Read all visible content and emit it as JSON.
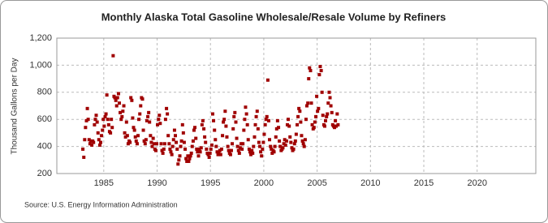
{
  "chart_data": {
    "type": "scatter",
    "title": "Monthly Alaska Total Gasoline Wholesale/Resale Volume by Refiners",
    "y_label": "Thousand Gallons per Day",
    "source": "Source: U.S. Energy Information Administration",
    "color": "#a00000",
    "grid": true,
    "xlim": [
      1980.6,
      2025.5
    ],
    "xticks": [
      1985,
      1990,
      1995,
      2000,
      2005,
      2010,
      2015,
      2020
    ],
    "ylim": [
      200,
      1200
    ],
    "yticks": [
      200,
      400,
      600,
      800,
      {
        "value": 1000,
        "label": "1,000"
      },
      {
        "value": 1200,
        "label": "1,200"
      }
    ],
    "x": [
      1983.04,
      1983.13,
      1983.21,
      1983.29,
      1983.38,
      1983.46,
      1983.54,
      1983.63,
      1983.71,
      1983.79,
      1983.88,
      1983.96,
      1984.04,
      1984.13,
      1984.21,
      1984.29,
      1984.38,
      1984.46,
      1984.54,
      1984.63,
      1984.71,
      1984.79,
      1984.88,
      1984.96,
      1985.04,
      1985.13,
      1985.21,
      1985.29,
      1985.38,
      1985.46,
      1985.54,
      1985.63,
      1985.71,
      1985.79,
      1985.88,
      1985.96,
      1986.04,
      1986.13,
      1986.21,
      1986.29,
      1986.38,
      1986.46,
      1986.54,
      1986.63,
      1986.71,
      1986.79,
      1986.88,
      1986.96,
      1987.04,
      1987.13,
      1987.21,
      1987.29,
      1987.38,
      1987.46,
      1987.54,
      1987.63,
      1987.71,
      1987.79,
      1987.88,
      1987.96,
      1988.04,
      1988.13,
      1988.21,
      1988.29,
      1988.38,
      1988.46,
      1988.54,
      1988.63,
      1988.71,
      1988.79,
      1988.88,
      1988.96,
      1989.04,
      1989.13,
      1989.21,
      1989.29,
      1989.38,
      1989.46,
      1989.54,
      1989.63,
      1989.71,
      1989.79,
      1989.88,
      1989.96,
      1990.04,
      1990.13,
      1990.21,
      1990.29,
      1990.38,
      1990.46,
      1990.54,
      1990.63,
      1990.71,
      1990.79,
      1990.88,
      1990.96,
      1991.04,
      1991.13,
      1991.21,
      1991.29,
      1991.38,
      1991.46,
      1991.54,
      1991.63,
      1991.71,
      1991.79,
      1991.88,
      1991.96,
      1992.04,
      1992.13,
      1992.21,
      1992.29,
      1992.38,
      1992.46,
      1992.54,
      1992.63,
      1992.71,
      1992.79,
      1992.88,
      1992.96,
      1993.04,
      1993.13,
      1993.21,
      1993.29,
      1993.38,
      1993.46,
      1993.54,
      1993.63,
      1993.71,
      1993.79,
      1993.88,
      1993.96,
      1994.04,
      1994.13,
      1994.21,
      1994.29,
      1994.38,
      1994.46,
      1994.54,
      1994.63,
      1994.71,
      1994.79,
      1994.88,
      1994.96,
      1995.04,
      1995.13,
      1995.21,
      1995.29,
      1995.38,
      1995.46,
      1995.54,
      1995.63,
      1995.71,
      1995.79,
      1995.88,
      1995.96,
      1996.04,
      1996.13,
      1996.21,
      1996.29,
      1996.38,
      1996.46,
      1996.54,
      1996.63,
      1996.71,
      1996.79,
      1996.88,
      1996.96,
      1997.04,
      1997.13,
      1997.21,
      1997.29,
      1997.38,
      1997.46,
      1997.54,
      1997.63,
      1997.71,
      1997.79,
      1997.88,
      1997.96,
      1998.04,
      1998.13,
      1998.21,
      1998.29,
      1998.38,
      1998.46,
      1998.54,
      1998.63,
      1998.71,
      1998.79,
      1998.88,
      1998.96,
      1999.04,
      1999.13,
      1999.21,
      1999.29,
      1999.38,
      1999.46,
      1999.54,
      1999.63,
      1999.71,
      1999.79,
      1999.88,
      1999.96,
      2000.04,
      2000.13,
      2000.21,
      2000.29,
      2000.38,
      2000.46,
      2000.54,
      2000.63,
      2000.71,
      2000.79,
      2000.88,
      2000.96,
      2001.04,
      2001.13,
      2001.21,
      2001.29,
      2001.38,
      2001.46,
      2001.54,
      2001.63,
      2001.71,
      2001.79,
      2001.88,
      2001.96,
      2002.04,
      2002.13,
      2002.21,
      2002.29,
      2002.38,
      2002.46,
      2002.54,
      2002.63,
      2002.71,
      2002.79,
      2002.88,
      2002.96,
      2003.04,
      2003.13,
      2003.21,
      2003.29,
      2003.38,
      2003.46,
      2003.54,
      2003.63,
      2003.71,
      2003.79,
      2003.88,
      2003.96,
      2004.04,
      2004.13,
      2004.21,
      2004.29,
      2004.38,
      2004.46,
      2004.54,
      2004.63,
      2004.71,
      2004.79,
      2004.88,
      2004.96,
      2005.04,
      2005.13,
      2005.21,
      2005.29,
      2005.38,
      2005.46,
      2005.54,
      2005.63,
      2005.71,
      2005.79,
      2005.88,
      2005.96,
      2006.04,
      2006.13,
      2006.21,
      2006.29,
      2006.38,
      2006.46,
      2006.54,
      2006.63,
      2006.71,
      2006.79,
      2006.88,
      2006.96
    ],
    "values": [
      380,
      320,
      450,
      540,
      590,
      680,
      600,
      450,
      420,
      440,
      410,
      440,
      430,
      560,
      600,
      630,
      580,
      500,
      450,
      410,
      430,
      480,
      520,
      600,
      550,
      620,
      640,
      780,
      600,
      560,
      510,
      500,
      600,
      540,
      1070,
      770,
      760,
      740,
      700,
      760,
      790,
      720,
      650,
      600,
      620,
      660,
      700,
      500,
      470,
      580,
      480,
      420,
      440,
      430,
      760,
      740,
      610,
      540,
      520,
      470,
      440,
      420,
      480,
      600,
      640,
      700,
      760,
      750,
      520,
      440,
      420,
      450,
      590,
      620,
      650,
      580,
      480,
      430,
      400,
      460,
      420,
      380,
      370,
      420,
      560,
      600,
      630,
      570,
      420,
      370,
      350,
      380,
      420,
      600,
      680,
      640,
      480,
      420,
      380,
      360,
      340,
      400,
      450,
      520,
      480,
      430,
      380,
      270,
      300,
      330,
      400,
      440,
      560,
      500,
      430,
      380,
      310,
      290,
      330,
      290,
      310,
      330,
      350,
      400,
      440,
      520,
      540,
      460,
      380,
      360,
      330,
      380,
      360,
      390,
      560,
      590,
      530,
      470,
      430,
      380,
      350,
      340,
      320,
      350,
      380,
      410,
      640,
      590,
      520,
      450,
      400,
      360,
      340,
      350,
      370,
      340,
      380,
      480,
      580,
      600,
      660,
      550,
      470,
      400,
      370,
      350,
      340,
      370,
      420,
      530,
      620,
      650,
      580,
      460,
      400,
      370,
      350,
      390,
      420,
      380,
      420,
      520,
      600,
      690,
      640,
      560,
      450,
      380,
      360,
      340,
      370,
      350,
      400,
      470,
      560,
      620,
      660,
      530,
      430,
      400,
      360,
      330,
      380,
      430,
      490,
      560,
      600,
      620,
      890,
      590,
      450,
      400,
      380,
      350,
      370,
      360,
      400,
      470,
      530,
      590,
      540,
      440,
      400,
      370,
      380,
      390,
      420,
      450,
      410,
      440,
      560,
      600,
      550,
      470,
      430,
      390,
      370,
      380,
      420,
      440,
      490,
      560,
      620,
      680,
      660,
      580,
      480,
      440,
      420,
      400,
      450,
      600,
      700,
      720,
      900,
      980,
      960,
      720,
      560,
      530,
      540,
      580,
      620,
      770,
      660,
      680,
      930,
      990,
      960,
      800,
      630,
      560,
      550,
      590,
      620,
      640,
      720,
      800,
      760,
      700,
      650,
      560,
      550,
      540,
      590,
      550,
      640,
      560
    ]
  }
}
